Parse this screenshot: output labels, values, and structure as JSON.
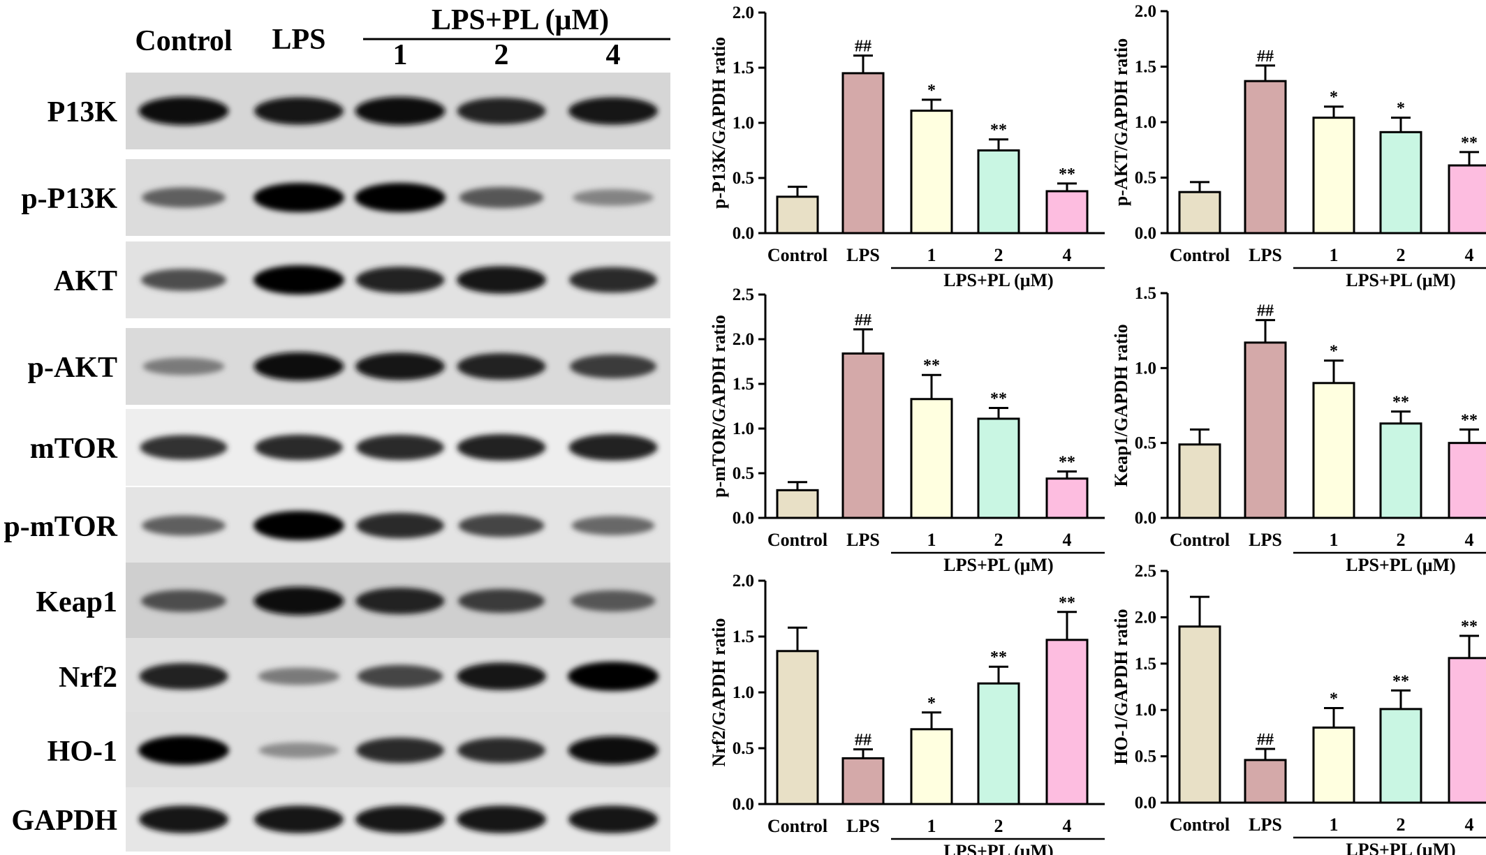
{
  "blot": {
    "header": {
      "control": "Control",
      "lps": "LPS",
      "group": "LPS+PL (μM)",
      "doses": [
        "1",
        "2",
        "4"
      ]
    },
    "rows": [
      {
        "label": "P13K",
        "intensity": [
          0.95,
          0.9,
          0.95,
          0.85,
          0.9
        ]
      },
      {
        "label": "p-P13K",
        "intensity": [
          0.5,
          1.0,
          1.0,
          0.55,
          0.3
        ]
      },
      {
        "label": "AKT",
        "intensity": [
          0.6,
          1.0,
          0.85,
          0.9,
          0.8
        ]
      },
      {
        "label": "p-AKT",
        "intensity": [
          0.35,
          0.95,
          0.9,
          0.85,
          0.7
        ]
      },
      {
        "label": "mTOR",
        "intensity": [
          0.75,
          0.8,
          0.8,
          0.85,
          0.85
        ]
      },
      {
        "label": "p-mTOR",
        "intensity": [
          0.5,
          1.0,
          0.8,
          0.65,
          0.45
        ]
      },
      {
        "label": "Keap1",
        "intensity": [
          0.6,
          0.95,
          0.85,
          0.7,
          0.55
        ]
      },
      {
        "label": "Nrf2",
        "intensity": [
          0.85,
          0.35,
          0.65,
          0.9,
          1.0
        ]
      },
      {
        "label": "HO-1",
        "intensity": [
          1.0,
          0.25,
          0.8,
          0.8,
          0.95
        ]
      },
      {
        "label": "GAPDH",
        "intensity": [
          0.9,
          0.9,
          0.9,
          0.9,
          0.9
        ]
      }
    ]
  },
  "colors": [
    "#e8e0c6",
    "#d4a9a9",
    "#ffffe0",
    "#c9f6e3",
    "#fdbde0"
  ],
  "chart_data": [
    {
      "type": "bar",
      "ylabel": "p-P13K/GAPDH ratio",
      "ylim": [
        0,
        2.0
      ],
      "yticks": [
        "0.0",
        "0.5",
        "1.0",
        "1.5",
        "2.0"
      ],
      "categories": [
        "Control",
        "LPS",
        "1",
        "2",
        "4"
      ],
      "group_label": "LPS+PL (μM)",
      "values": [
        0.33,
        1.45,
        1.11,
        0.75,
        0.38
      ],
      "errors": [
        0.09,
        0.16,
        0.1,
        0.1,
        0.07
      ],
      "annotations": [
        "",
        "##",
        "*",
        "**",
        "**"
      ]
    },
    {
      "type": "bar",
      "ylabel": "p-AKT/GAPDH ratio",
      "ylim": [
        0,
        2.0
      ],
      "yticks": [
        "0.0",
        "0.5",
        "1.0",
        "1.5",
        "2.0"
      ],
      "categories": [
        "Control",
        "LPS",
        "1",
        "2",
        "4"
      ],
      "group_label": "LPS+PL (μM)",
      "values": [
        0.37,
        1.37,
        1.04,
        0.91,
        0.61
      ],
      "errors": [
        0.09,
        0.14,
        0.1,
        0.13,
        0.12
      ],
      "annotations": [
        "",
        "##",
        "*",
        "*",
        "**"
      ]
    },
    {
      "type": "bar",
      "ylabel": "p-mTOR/GAPDH ratio",
      "ylim": [
        0,
        2.5
      ],
      "yticks": [
        "0.0",
        "0.5",
        "1.0",
        "1.5",
        "2.0",
        "2.5"
      ],
      "categories": [
        "Control",
        "LPS",
        "1",
        "2",
        "4"
      ],
      "group_label": "LPS+PL (μM)",
      "values": [
        0.31,
        1.84,
        1.33,
        1.11,
        0.44
      ],
      "errors": [
        0.09,
        0.27,
        0.27,
        0.12,
        0.08
      ],
      "annotations": [
        "",
        "##",
        "**",
        "**",
        "**"
      ]
    },
    {
      "type": "bar",
      "ylabel": "Keap1/GAPDH ratio",
      "ylim": [
        0,
        1.5
      ],
      "yticks": [
        "0.0",
        "0.5",
        "1.0",
        "1.5"
      ],
      "categories": [
        "Control",
        "LPS",
        "1",
        "2",
        "4"
      ],
      "group_label": "LPS+PL (μM)",
      "values": [
        0.49,
        1.17,
        0.9,
        0.63,
        0.5
      ],
      "errors": [
        0.1,
        0.15,
        0.15,
        0.08,
        0.09
      ],
      "annotations": [
        "",
        "##",
        "*",
        "**",
        "**"
      ]
    },
    {
      "type": "bar",
      "ylabel": "Nrf2/GAPDH ratio",
      "ylim": [
        0,
        2.0
      ],
      "yticks": [
        "0.0",
        "0.5",
        "1.0",
        "1.5",
        "2.0"
      ],
      "categories": [
        "Control",
        "LPS",
        "1",
        "2",
        "4"
      ],
      "group_label": "LPS+PL (μM)",
      "values": [
        1.37,
        0.41,
        0.67,
        1.08,
        1.47
      ],
      "errors": [
        0.21,
        0.08,
        0.15,
        0.15,
        0.25
      ],
      "annotations": [
        "",
        "##",
        "*",
        "**",
        "**"
      ]
    },
    {
      "type": "bar",
      "ylabel": "HO-1/GAPDH ratio",
      "ylim": [
        0,
        2.5
      ],
      "yticks": [
        "0.0",
        "0.5",
        "1.0",
        "1.5",
        "2.0",
        "2.5"
      ],
      "categories": [
        "Control",
        "LPS",
        "1",
        "2",
        "4"
      ],
      "group_label": "LPS+PL (μM)",
      "values": [
        1.9,
        0.46,
        0.81,
        1.01,
        1.56
      ],
      "errors": [
        0.32,
        0.12,
        0.21,
        0.2,
        0.24
      ],
      "annotations": [
        "",
        "##",
        "*",
        "**",
        "**"
      ]
    }
  ]
}
